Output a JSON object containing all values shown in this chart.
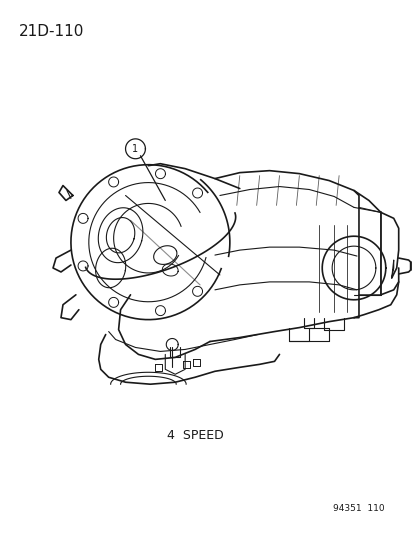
{
  "title_text": "21D-110",
  "title_fontsize": 11,
  "title_color": "#1a1a1a",
  "caption_text": "4  SPEED",
  "caption_fontsize": 9,
  "caption_color": "#1a1a1a",
  "part_number_text": "94351  110",
  "part_number_fontsize": 6.5,
  "part_number_color": "#1a1a1a",
  "background_color": "#ffffff",
  "line_color": "#1a1a1a",
  "figure_width": 4.14,
  "figure_height": 5.33,
  "dpi": 100
}
